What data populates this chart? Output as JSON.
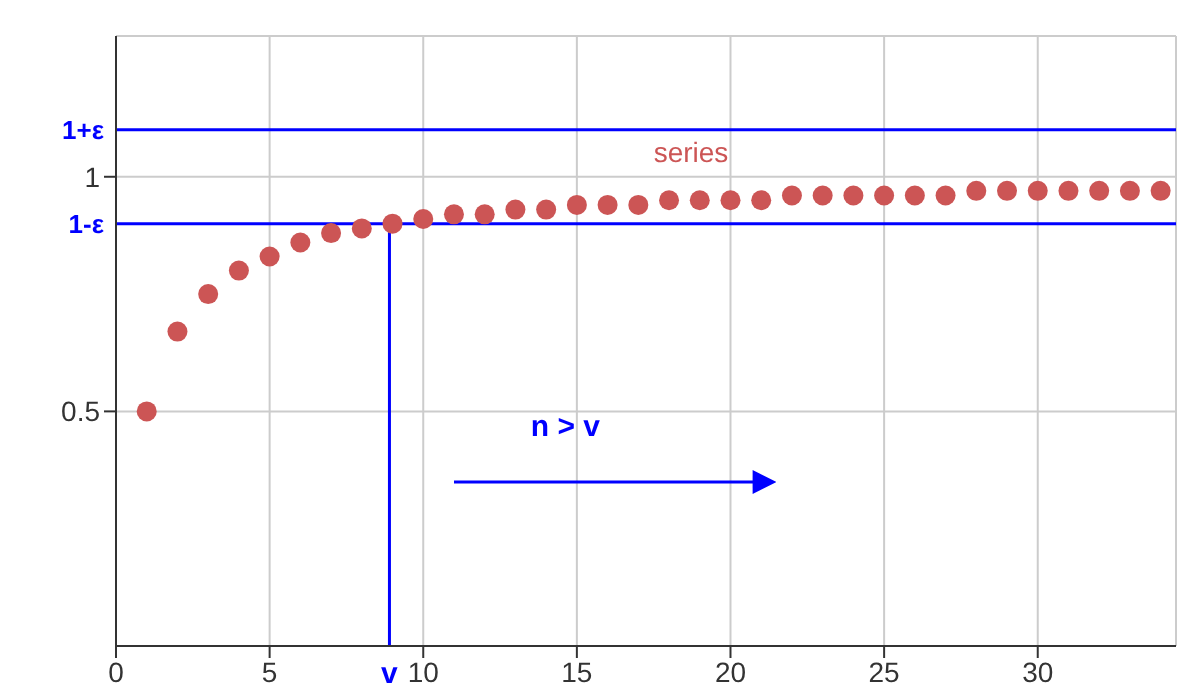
{
  "chart_data": {
    "type": "scatter",
    "x": [
      1,
      2,
      3,
      4,
      5,
      6,
      7,
      8,
      9,
      10,
      11,
      12,
      13,
      14,
      15,
      16,
      17,
      18,
      19,
      20,
      21,
      22,
      23,
      24,
      25,
      26,
      27,
      28,
      29,
      30,
      31,
      32,
      33,
      34
    ],
    "series": [
      {
        "name": "series",
        "color": "#cc5555",
        "values": [
          0.5,
          0.67,
          0.75,
          0.8,
          0.83,
          0.86,
          0.88,
          0.89,
          0.9,
          0.91,
          0.92,
          0.92,
          0.93,
          0.93,
          0.94,
          0.94,
          0.94,
          0.95,
          0.95,
          0.95,
          0.95,
          0.96,
          0.96,
          0.96,
          0.96,
          0.96,
          0.96,
          0.97,
          0.97,
          0.97,
          0.97,
          0.97,
          0.97,
          0.97
        ]
      }
    ],
    "xlim": [
      0,
      34.5
    ],
    "xticks": [
      0,
      5,
      10,
      15,
      20,
      25,
      30
    ],
    "ylim": [
      0,
      1.3
    ],
    "yticks": [
      0.5,
      1
    ],
    "ref_lines": [
      {
        "axis": "y",
        "value": 1.1,
        "label": "1+ε",
        "color": "#0000ff"
      },
      {
        "axis": "y",
        "value": 0.9,
        "label": "1-ε",
        "color": "#0000ff"
      },
      {
        "axis": "x",
        "value": 8.9,
        "label": "v",
        "color": "#0000ff"
      }
    ],
    "annotations": [
      "n > v"
    ],
    "grid": true,
    "marker": "circle"
  }
}
